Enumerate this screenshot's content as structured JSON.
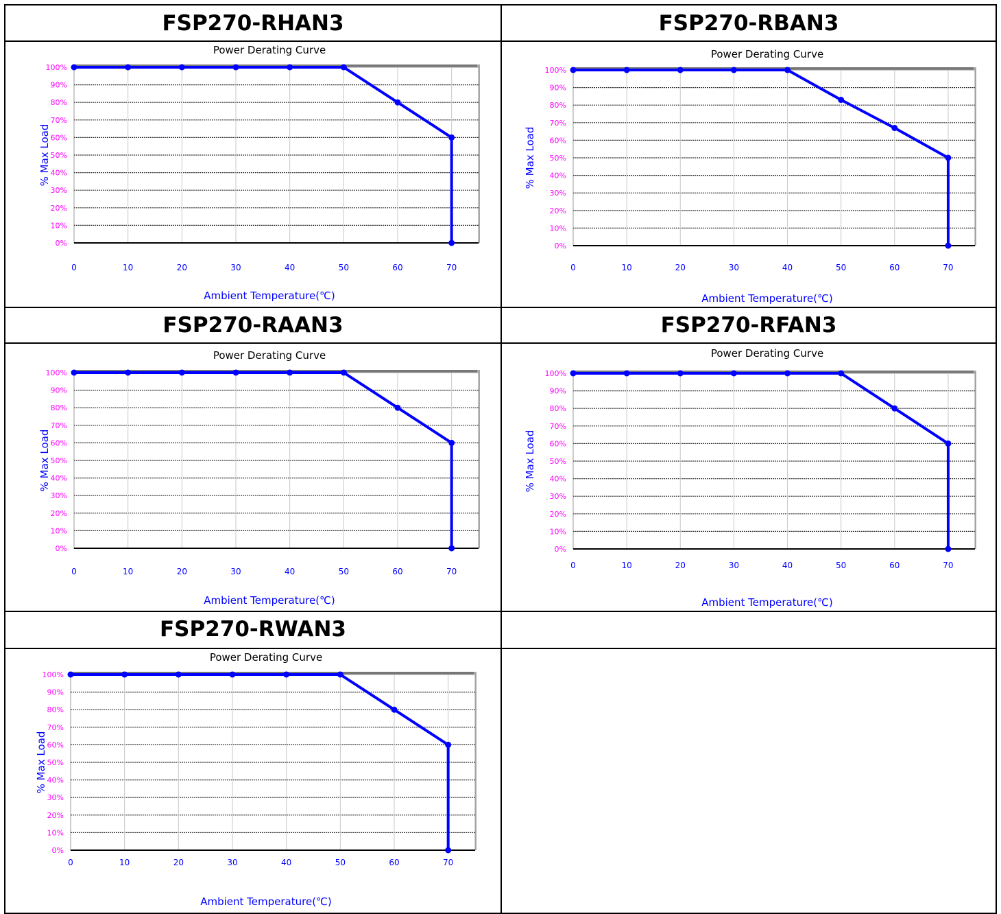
{
  "panels": [
    {
      "model": "FSP270-RHAN3"
    },
    {
      "model": "FSP270-RBAN3"
    },
    {
      "model": "FSP270-RAAN3"
    },
    {
      "model": "FSP270-RFAN3"
    },
    {
      "model": "FSP270-RWAN3"
    }
  ],
  "chart_data": [
    {
      "type": "line",
      "title": "Power Derating Curve",
      "xlabel": "Ambient Temperature(℃)",
      "ylabel": "% Max Load",
      "x_ticks": [
        0,
        10,
        20,
        30,
        40,
        50,
        60,
        70
      ],
      "y_ticks": [
        "0%",
        "10%",
        "20%",
        "30%",
        "40%",
        "50%",
        "60%",
        "70%",
        "80%",
        "90%",
        "100%"
      ],
      "xlim": [
        0,
        75
      ],
      "ylim": [
        0,
        100
      ],
      "grid": true,
      "series": [
        {
          "x": [
            0,
            10,
            20,
            30,
            40,
            50,
            60,
            70,
            70
          ],
          "y": [
            100,
            100,
            100,
            100,
            100,
            100,
            80,
            60,
            0
          ]
        }
      ],
      "color": "#0000ff"
    },
    {
      "type": "line",
      "title": "Power Derating Curve",
      "xlabel": "Ambient Temperature(℃)",
      "ylabel": "% Max Load",
      "x_ticks": [
        0,
        10,
        20,
        30,
        40,
        50,
        60,
        70
      ],
      "y_ticks": [
        "0%",
        "10%",
        "20%",
        "30%",
        "40%",
        "50%",
        "60%",
        "70%",
        "80%",
        "90%",
        "100%"
      ],
      "xlim": [
        0,
        75
      ],
      "ylim": [
        0,
        100
      ],
      "grid": true,
      "series": [
        {
          "x": [
            0,
            10,
            20,
            30,
            40,
            50,
            60,
            70,
            70
          ],
          "y": [
            100,
            100,
            100,
            100,
            100,
            83,
            67,
            50,
            0
          ]
        }
      ],
      "color": "#0000ff"
    },
    {
      "type": "line",
      "title": "Power Derating Curve",
      "xlabel": "Ambient Temperature(℃)",
      "ylabel": "% Max Load",
      "x_ticks": [
        0,
        10,
        20,
        30,
        40,
        50,
        60,
        70
      ],
      "y_ticks": [
        "0%",
        "10%",
        "20%",
        "30%",
        "40%",
        "50%",
        "60%",
        "70%",
        "80%",
        "90%",
        "100%"
      ],
      "xlim": [
        0,
        75
      ],
      "ylim": [
        0,
        100
      ],
      "grid": true,
      "series": [
        {
          "x": [
            0,
            10,
            20,
            30,
            40,
            50,
            60,
            70,
            70
          ],
          "y": [
            100,
            100,
            100,
            100,
            100,
            100,
            80,
            60,
            0
          ]
        }
      ],
      "color": "#0000ff"
    },
    {
      "type": "line",
      "title": "Power Derating Curve",
      "xlabel": "Ambient Temperature(℃)",
      "ylabel": "% Max Load",
      "x_ticks": [
        0,
        10,
        20,
        30,
        40,
        50,
        60,
        70
      ],
      "y_ticks": [
        "0%",
        "10%",
        "20%",
        "30%",
        "40%",
        "50%",
        "60%",
        "70%",
        "80%",
        "90%",
        "100%"
      ],
      "xlim": [
        0,
        75
      ],
      "ylim": [
        0,
        100
      ],
      "grid": true,
      "series": [
        {
          "x": [
            0,
            10,
            20,
            30,
            40,
            50,
            60,
            70,
            70
          ],
          "y": [
            100,
            100,
            100,
            100,
            100,
            100,
            80,
            60,
            0
          ]
        }
      ],
      "color": "#0000ff"
    },
    {
      "type": "line",
      "title": "Power Derating Curve",
      "xlabel": "Ambient Temperature(℃)",
      "ylabel": "% Max Load",
      "x_ticks": [
        0,
        10,
        20,
        30,
        40,
        50,
        60,
        70
      ],
      "y_ticks": [
        "0%",
        "10%",
        "20%",
        "30%",
        "40%",
        "50%",
        "60%",
        "70%",
        "80%",
        "90%",
        "100%"
      ],
      "xlim": [
        0,
        75
      ],
      "ylim": [
        0,
        100
      ],
      "grid": true,
      "series": [
        {
          "x": [
            0,
            10,
            20,
            30,
            40,
            50,
            60,
            70,
            70
          ],
          "y": [
            100,
            100,
            100,
            100,
            100,
            100,
            80,
            60,
            0
          ]
        }
      ],
      "color": "#0000ff"
    }
  ]
}
